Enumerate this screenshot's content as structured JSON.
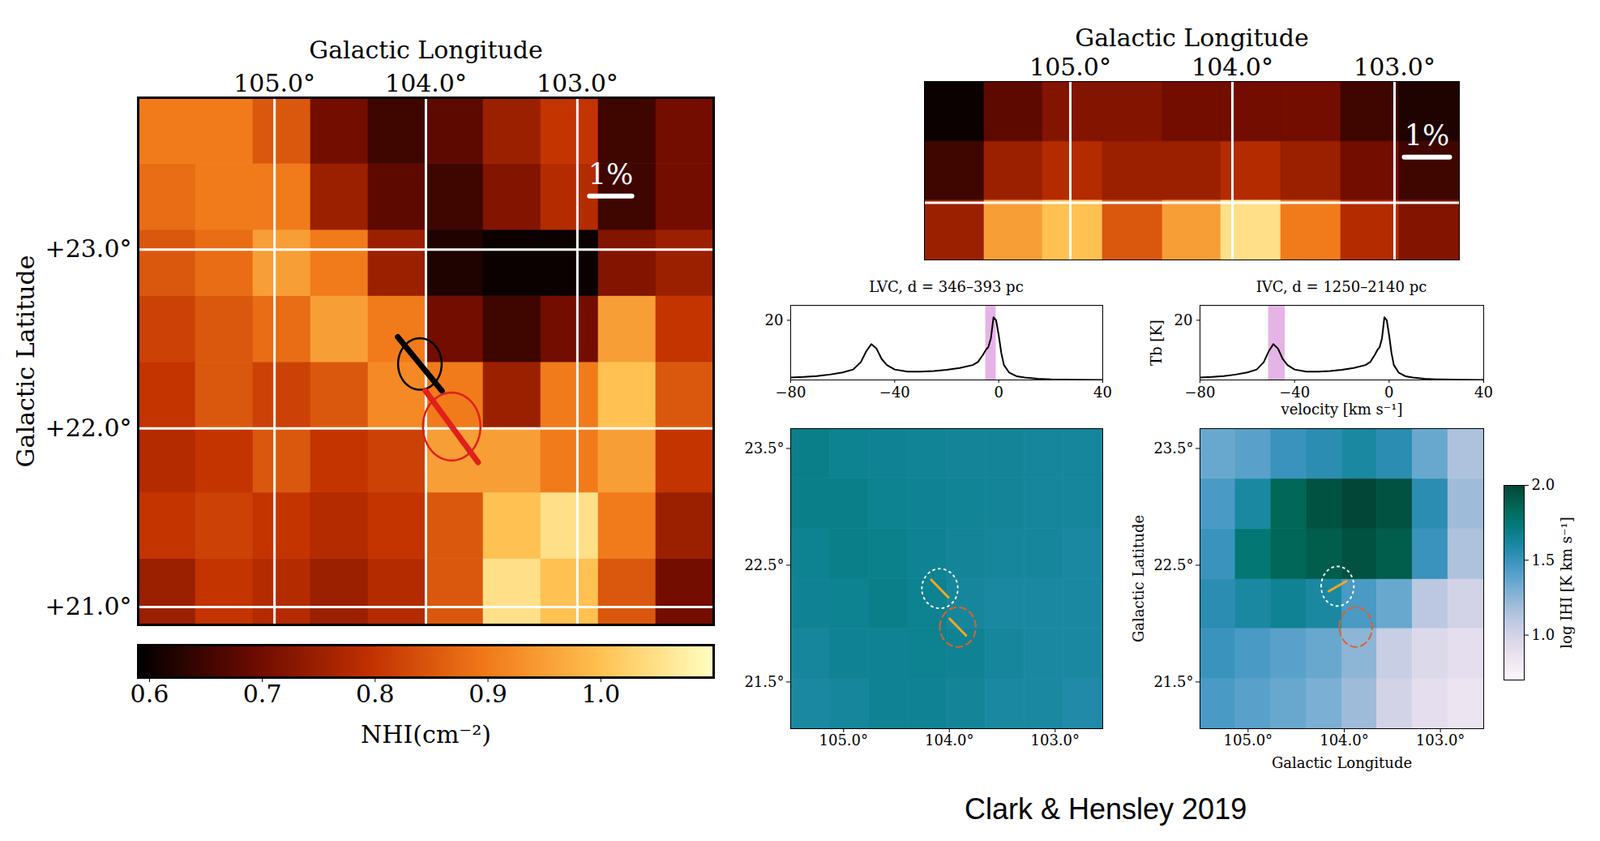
{
  "chart_data": [
    {
      "type": "heatmap",
      "xlabel": "Galactic Longitude",
      "ylabel": "Galactic Latitude",
      "xlim": [
        105.9,
        102.1
      ],
      "ylim": [
        20.9,
        23.85
      ],
      "xticks": [
        {
          "value": 105,
          "label": "105.0°"
        },
        {
          "value": 104,
          "label": "104.0°"
        },
        {
          "value": 103,
          "label": "103.0°"
        }
      ],
      "yticks": [
        {
          "value": 21,
          "label": "+21.0°"
        },
        {
          "value": 22,
          "label": "+22.0°"
        },
        {
          "value": 23,
          "label": "+23.0°"
        }
      ],
      "grid": true,
      "lon_edges": [
        105.9,
        105.52,
        105.14,
        104.76,
        104.38,
        104.0,
        103.62,
        103.24,
        102.86,
        102.48,
        102.1
      ],
      "lat_edges": [
        20.9,
        21.27,
        21.64,
        22.0,
        22.37,
        22.74,
        23.11,
        23.48,
        23.85
      ],
      "cells": [
        [
          0.75,
          0.8,
          0.78,
          0.75,
          0.78,
          0.85,
          1.05,
          1.0,
          0.85,
          0.7
        ],
        [
          0.8,
          0.82,
          0.8,
          0.78,
          0.8,
          0.85,
          1.0,
          1.05,
          0.9,
          0.75
        ],
        [
          0.78,
          0.8,
          0.85,
          0.8,
          0.82,
          0.95,
          0.95,
          0.9,
          0.95,
          0.8
        ],
        [
          0.8,
          0.85,
          0.82,
          0.85,
          0.92,
          0.9,
          0.75,
          0.9,
          1.0,
          0.85
        ],
        [
          0.82,
          0.85,
          0.88,
          0.95,
          0.9,
          0.7,
          0.65,
          0.7,
          0.95,
          0.8
        ],
        [
          0.85,
          0.88,
          0.95,
          0.9,
          0.75,
          0.62,
          0.6,
          0.6,
          0.72,
          0.75
        ],
        [
          0.88,
          0.9,
          0.9,
          0.75,
          0.68,
          0.65,
          0.72,
          0.78,
          0.65,
          0.7
        ],
        [
          0.9,
          0.9,
          0.85,
          0.7,
          0.65,
          0.68,
          0.75,
          0.8,
          0.65,
          0.7
        ]
      ],
      "colorbar": {
        "label": "NHI(cm⁻²)",
        "range": [
          0.59,
          1.1
        ],
        "ticks": [
          0.6,
          0.7,
          0.8,
          0.9,
          {
            "value": 1,
            "label": "1.0"
          }
        ]
      },
      "scale_bar": {
        "label": "1%",
        "lon": 102.78,
        "lat": 23.3,
        "percent": 1,
        "length_deg": 0.28
      },
      "apertures": [
        {
          "lon": 104.04,
          "lat": 22.36,
          "radius_deg": 0.144,
          "pa_deg": 44,
          "p_percent": 1.5,
          "color": "black",
          "line_style": "solid"
        },
        {
          "lon": 103.83,
          "lat": 22.01,
          "radius_deg": 0.19,
          "pa_deg": 41,
          "p_percent": 1.9,
          "color": "#e0201a",
          "line_style": "solid"
        }
      ]
    },
    {
      "type": "heatmap",
      "xlabel": "Galactic Longitude",
      "xlim": [
        105.9,
        102.6
      ],
      "ylim": [
        22.6,
        23.85
      ],
      "xticks": [
        {
          "value": 105,
          "label": "105.0°"
        },
        {
          "value": 104,
          "label": "104.0°"
        },
        {
          "value": 103,
          "label": "103.0°"
        }
      ],
      "yticks": [
        23
      ],
      "tick_labels": "x",
      "grid": true,
      "lon_edges": [
        105.9,
        105.53,
        105.17,
        104.8,
        104.43,
        104.07,
        103.7,
        103.33,
        102.97,
        102.6
      ],
      "lat_edges": [
        22.6,
        23.02,
        23.43,
        23.85
      ],
      "cells": [
        [
          0.75,
          0.95,
          1.0,
          0.85,
          0.95,
          1.05,
          0.9,
          0.78,
          0.72
        ],
        [
          0.65,
          0.75,
          0.78,
          0.75,
          0.75,
          0.78,
          0.75,
          0.7,
          0.65
        ],
        [
          0.6,
          0.68,
          0.72,
          0.72,
          0.7,
          0.7,
          0.7,
          0.65,
          0.62
        ]
      ],
      "color_range": [
        0.59,
        1.1
      ],
      "scale_bar": {
        "label": "1%",
        "lon": 102.8,
        "lat": 23.32,
        "percent": 1,
        "length_deg": 0.28
      }
    },
    {
      "type": "line",
      "title": "LVC, d = 346–393 pc",
      "color": "black",
      "x": [
        -80,
        -75,
        -70,
        -65,
        -60,
        -56,
        -53,
        -51,
        -49,
        -47,
        -45,
        -43,
        -40,
        -35,
        -30,
        -25,
        -20,
        -15,
        -10,
        -8,
        -6,
        -5,
        -4,
        -3,
        -2,
        -1,
        0,
        1,
        2,
        4,
        7,
        10,
        15,
        20,
        30,
        40
      ],
      "values": [
        0.8,
        1.0,
        1.3,
        1.8,
        2.5,
        3.5,
        6,
        9.5,
        12,
        10.5,
        7,
        5,
        3.5,
        2.8,
        2.8,
        3,
        3.4,
        4,
        5,
        6,
        8.5,
        10,
        11,
        14,
        21,
        20,
        15,
        9,
        5,
        2.5,
        1.2,
        0.8,
        0.4,
        0.2,
        0.1,
        0
      ],
      "xlim": [
        -80,
        40
      ],
      "ylim": [
        0,
        25
      ],
      "xticks": [
        {
          "value": -80,
          "label": "−80"
        },
        {
          "value": -40,
          "label": "−40"
        },
        0,
        40
      ],
      "yticks": [
        20
      ],
      "velocity_range": [
        -5,
        -1
      ]
    },
    {
      "type": "heatmap",
      "xlim": [
        105.5,
        102.55
      ],
      "ylim": [
        21.1,
        23.67
      ],
      "xticks": [
        {
          "value": 105,
          "label": "105.0°"
        },
        {
          "value": 104,
          "label": "104.0°"
        },
        {
          "value": 103,
          "label": "103.0°"
        }
      ],
      "yticks": [
        {
          "value": 21.5,
          "label": "21.5°"
        },
        {
          "value": 22.5,
          "label": "22.5°"
        },
        {
          "value": 23.5,
          "label": "23.5°"
        }
      ],
      "grid": false,
      "lon_edges": [
        105.5,
        105.13,
        104.76,
        104.39,
        104.02,
        103.66,
        103.29,
        102.92,
        102.55
      ],
      "lat_edges": [
        21.1,
        21.53,
        21.96,
        22.38,
        22.81,
        23.24,
        23.67
      ],
      "cells": [
        [
          1.6,
          1.62,
          1.65,
          1.65,
          1.63,
          1.6,
          1.6,
          1.58
        ],
        [
          1.62,
          1.65,
          1.65,
          1.66,
          1.65,
          1.62,
          1.6,
          1.6
        ],
        [
          1.65,
          1.66,
          1.68,
          1.66,
          1.62,
          1.6,
          1.6,
          1.6
        ],
        [
          1.66,
          1.68,
          1.67,
          1.65,
          1.63,
          1.62,
          1.62,
          1.6
        ],
        [
          1.68,
          1.68,
          1.66,
          1.65,
          1.64,
          1.63,
          1.62,
          1.62
        ],
        [
          1.68,
          1.66,
          1.65,
          1.64,
          1.63,
          1.63,
          1.62,
          1.62
        ]
      ],
      "color_range": [
        0.7,
        2.0
      ],
      "circles": [
        {
          "lon": 104.09,
          "lat": 22.3,
          "radius_deg": 0.17,
          "color": "white",
          "line_style": "dotted"
        },
        {
          "lon": 103.92,
          "lat": 21.97,
          "radius_deg": 0.17,
          "color": "#e0602a",
          "line_style": "dashed"
        }
      ],
      "segments": [
        {
          "lon": 104.09,
          "lat": 22.3,
          "pa_deg": 47,
          "length_deg": 0.22,
          "color": "#f5a623"
        },
        {
          "lon": 103.92,
          "lat": 21.97,
          "pa_deg": 47,
          "length_deg": 0.21,
          "color": "#f5a623"
        }
      ]
    },
    {
      "type": "line",
      "title": "IVC, d = 1250–2140 pc",
      "xlabel": "velocity [km s⁻¹]",
      "ylabel": "Tb [K]",
      "color": "black",
      "x": [
        -80,
        -75,
        -70,
        -65,
        -60,
        -56,
        -53,
        -51,
        -49,
        -47,
        -45,
        -43,
        -40,
        -35,
        -30,
        -25,
        -20,
        -15,
        -10,
        -8,
        -6,
        -5,
        -4,
        -3,
        -2,
        -1,
        0,
        1,
        2,
        4,
        7,
        10,
        15,
        20,
        30,
        40
      ],
      "values": [
        0.8,
        1.0,
        1.3,
        1.8,
        2.5,
        3.5,
        6,
        9.5,
        12,
        10.5,
        7,
        5,
        3.5,
        2.8,
        2.8,
        3,
        3.4,
        4,
        5,
        6,
        8.5,
        10,
        11,
        14,
        21,
        20,
        15,
        9,
        5,
        2.5,
        1.2,
        0.8,
        0.4,
        0.2,
        0.1,
        0
      ],
      "xlim": [
        -80,
        40
      ],
      "ylim": [
        0,
        25
      ],
      "xticks": [
        {
          "value": -80,
          "label": "−80"
        },
        {
          "value": -40,
          "label": "−40"
        },
        0,
        40
      ],
      "yticks": [
        20
      ],
      "velocity_range": [
        -51,
        -44
      ]
    },
    {
      "type": "heatmap",
      "xlabel": "Galactic Longitude",
      "ylabel": "Galactic Latitude",
      "xlim": [
        105.5,
        102.55
      ],
      "ylim": [
        21.1,
        23.67
      ],
      "xticks": [
        {
          "value": 105,
          "label": "105.0°"
        },
        {
          "value": 104,
          "label": "104.0°"
        },
        {
          "value": 103,
          "label": "103.0°"
        }
      ],
      "yticks": [
        {
          "value": 21.5,
          "label": "21.5°"
        },
        {
          "value": 22.5,
          "label": "22.5°"
        },
        {
          "value": 23.5,
          "label": "23.5°"
        }
      ],
      "grid": false,
      "lon_edges": [
        105.5,
        105.13,
        104.76,
        104.39,
        104.02,
        103.66,
        103.29,
        102.92,
        102.55
      ],
      "lat_edges": [
        21.1,
        21.53,
        21.96,
        22.38,
        22.81,
        23.24,
        23.67
      ],
      "cells": [
        [
          1.45,
          1.4,
          1.35,
          1.3,
          1.2,
          1.0,
          0.9,
          0.85
        ],
        [
          1.5,
          1.45,
          1.4,
          1.35,
          1.25,
          1.05,
          0.95,
          0.9
        ],
        [
          1.55,
          1.6,
          1.65,
          1.6,
          1.45,
          1.35,
          1.1,
          1.0
        ],
        [
          1.5,
          1.75,
          1.85,
          1.9,
          1.95,
          1.9,
          1.5,
          1.15
        ],
        [
          1.45,
          1.6,
          1.85,
          1.95,
          2.0,
          1.95,
          1.55,
          1.2
        ],
        [
          1.35,
          1.4,
          1.5,
          1.55,
          1.6,
          1.55,
          1.35,
          1.15
        ]
      ],
      "colorbar": {
        "label": "log IHI [K km s⁻¹]",
        "range": [
          0.7,
          2.0
        ],
        "ticks": [
          {
            "value": 1,
            "label": "1.0"
          },
          1.5,
          {
            "value": 2,
            "label": "2.0"
          }
        ]
      },
      "circles": [
        {
          "lon": 104.07,
          "lat": 22.32,
          "radius_deg": 0.17,
          "color": "white",
          "line_style": "dotted"
        },
        {
          "lon": 103.88,
          "lat": 21.97,
          "radius_deg": 0.17,
          "color": "#e0602a",
          "line_style": "dashed"
        }
      ],
      "segments": [
        {
          "lon": 104.07,
          "lat": 22.32,
          "pa_deg": -65,
          "length_deg": 0.2,
          "color": "#f5a623"
        }
      ]
    }
  ],
  "caption": "Clark & Hensley 2019"
}
